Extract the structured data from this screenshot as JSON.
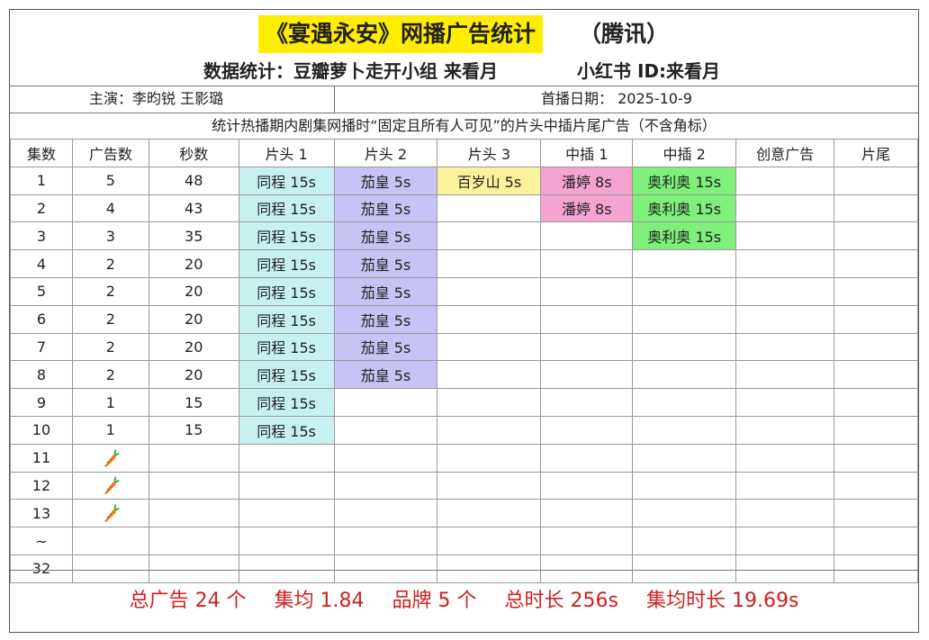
{
  "title": {
    "main": "《宴遇永安》网播广告统计",
    "suffix": "（腾讯）",
    "highlight_color": "#ffee00"
  },
  "subtitle": {
    "left": "数据统计：豆瓣萝卜走开小组 来看月",
    "right": "小红书 ID:来看月"
  },
  "info": {
    "cast": "主演：李昀锐 王影璐",
    "premiere": "首播日期： 2025-10-9"
  },
  "notice": "统计热播期内剧集网播时“固定且所有人可见”的片头中插片尾广告（不含角标）",
  "headers": [
    "集数",
    "广告数",
    "秒数",
    "片头 1",
    "片头 2",
    "片头 3",
    "中插 1",
    "中插 2",
    "创意广告",
    "片尾"
  ],
  "colors": {
    "tongcheng": "#c7f1f1",
    "jiahuang": "#c7c4f5",
    "baisuishan": "#fbf39b",
    "panting": "#f5a4cf",
    "aoliao": "#7ef07a",
    "summary_text": "#d21f1f"
  },
  "rows": [
    {
      "ep": "1",
      "count": "5",
      "seconds": "48",
      "cells": [
        "同程 15s",
        "茄皇 5s",
        "百岁山 5s",
        "潘婷 8s",
        "奥利奥 15s",
        "",
        ""
      ]
    },
    {
      "ep": "2",
      "count": "4",
      "seconds": "43",
      "cells": [
        "同程 15s",
        "茄皇 5s",
        "",
        "潘婷 8s",
        "奥利奥 15s",
        "",
        ""
      ]
    },
    {
      "ep": "3",
      "count": "3",
      "seconds": "35",
      "cells": [
        "同程 15s",
        "茄皇 5s",
        "",
        "",
        "奥利奥 15s",
        "",
        ""
      ]
    },
    {
      "ep": "4",
      "count": "2",
      "seconds": "20",
      "cells": [
        "同程 15s",
        "茄皇 5s",
        "",
        "",
        "",
        "",
        ""
      ]
    },
    {
      "ep": "5",
      "count": "2",
      "seconds": "20",
      "cells": [
        "同程 15s",
        "茄皇 5s",
        "",
        "",
        "",
        "",
        ""
      ]
    },
    {
      "ep": "6",
      "count": "2",
      "seconds": "20",
      "cells": [
        "同程 15s",
        "茄皇 5s",
        "",
        "",
        "",
        "",
        ""
      ]
    },
    {
      "ep": "7",
      "count": "2",
      "seconds": "20",
      "cells": [
        "同程 15s",
        "茄皇 5s",
        "",
        "",
        "",
        "",
        ""
      ]
    },
    {
      "ep": "8",
      "count": "2",
      "seconds": "20",
      "cells": [
        "同程 15s",
        "茄皇 5s",
        "",
        "",
        "",
        "",
        ""
      ]
    },
    {
      "ep": "9",
      "count": "1",
      "seconds": "15",
      "cells": [
        "同程 15s",
        "",
        "",
        "",
        "",
        "",
        ""
      ]
    },
    {
      "ep": "10",
      "count": "1",
      "seconds": "15",
      "cells": [
        "同程 15s",
        "",
        "",
        "",
        "",
        "",
        ""
      ]
    },
    {
      "ep": "11",
      "count_icon": "carrot-icon",
      "seconds": "",
      "cells": [
        "",
        "",
        "",
        "",
        "",
        "",
        ""
      ]
    },
    {
      "ep": "12",
      "count_icon": "carrot-icon",
      "seconds": "",
      "cells": [
        "",
        "",
        "",
        "",
        "",
        "",
        ""
      ]
    },
    {
      "ep": "13",
      "count_icon": "carrot-icon",
      "seconds": "",
      "cells": [
        "",
        "",
        "",
        "",
        "",
        "",
        ""
      ]
    },
    {
      "ep": "~",
      "count": "",
      "seconds": "",
      "cells": [
        "",
        "",
        "",
        "",
        "",
        "",
        ""
      ]
    },
    {
      "ep": "32",
      "count": "",
      "seconds": "",
      "cells": [
        "",
        "",
        "",
        "",
        "",
        "",
        ""
      ]
    }
  ],
  "summary": {
    "total_ads": "总广告 24 个",
    "avg": "集均 1.84",
    "brands": "品牌 5 个",
    "total_time": "总时长 256s",
    "avg_time": "集均时长 19.69s"
  }
}
